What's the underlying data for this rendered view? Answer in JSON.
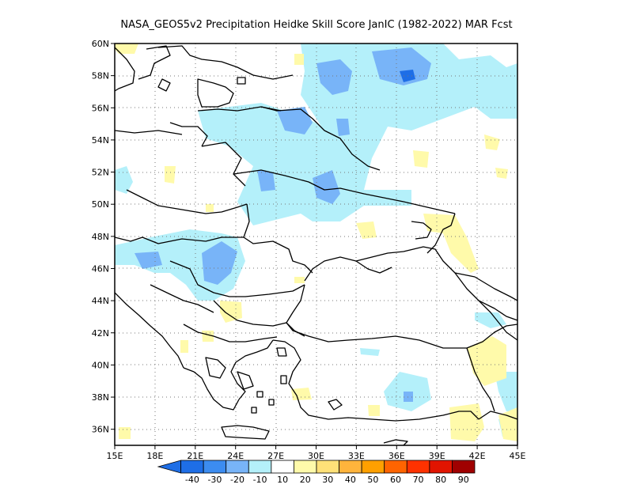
{
  "title": "NASA_GEOS5v2  Precipitation Heidke Skill Score JanIC (1982-2022) MAR Fcst",
  "map": {
    "lon_range": [
      15,
      45
    ],
    "lat_range": [
      35,
      60
    ],
    "lon_ticks": [
      "15E",
      "18E",
      "21E",
      "24E",
      "27E",
      "30E",
      "33E",
      "36E",
      "39E",
      "42E",
      "45E"
    ],
    "lat_ticks": [
      "36N",
      "38N",
      "40N",
      "42N",
      "44N",
      "46N",
      "48N",
      "50N",
      "52N",
      "54N",
      "56N",
      "58N",
      "60N"
    ],
    "grid": "dotted"
  },
  "colorbar": {
    "labels": [
      "-40",
      "-30",
      "-20",
      "-10",
      "10",
      "20",
      "30",
      "40",
      "50",
      "60",
      "70",
      "80",
      "90"
    ],
    "colors": [
      "#1e6ee6",
      "#3c8cf0",
      "#78b4f8",
      "#b4f0fa",
      "#ffffff",
      "#fffaaa",
      "#ffe178",
      "#ffb43c",
      "#ffa000",
      "#ff6400",
      "#ff3200",
      "#e11400",
      "#a00000"
    ]
  },
  "fills": {
    "c1": "#b4f0fa",
    "c2": "#78b4f8",
    "c3": "#3c8cf0",
    "c4": "#1e6ee6",
    "y1": "#fffaaa"
  }
}
